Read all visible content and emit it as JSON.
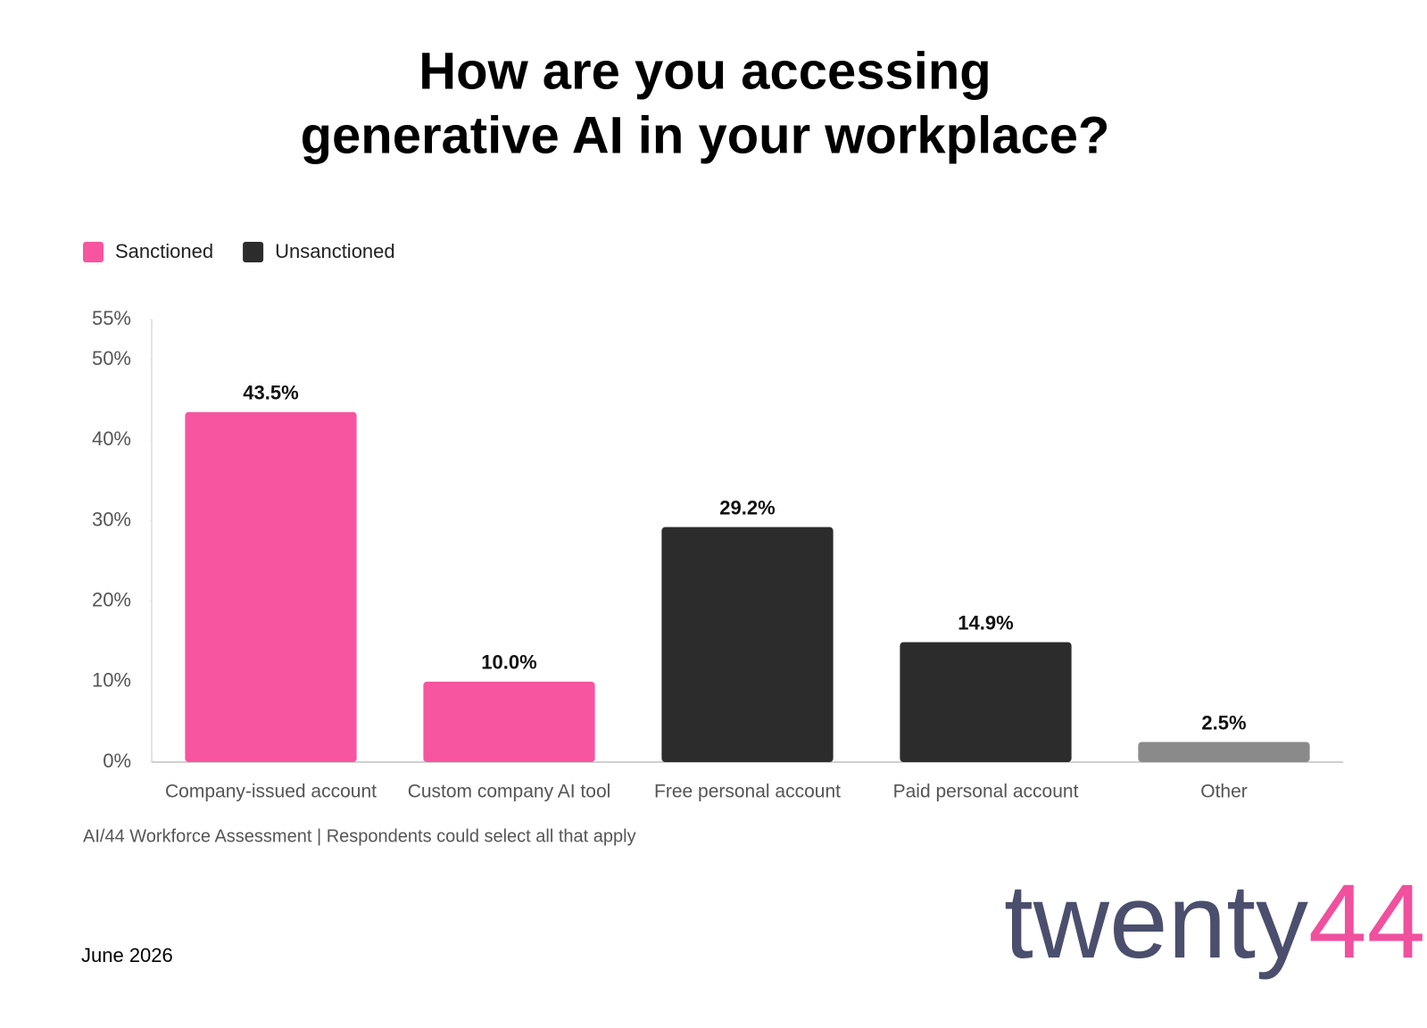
{
  "chart_data": {
    "type": "bar",
    "title": [
      "How are you accessing",
      "generative AI in your workplace?"
    ],
    "legend": [
      {
        "name": "Sanctioned",
        "color": "#f7559f"
      },
      {
        "name": "Unsanctioned",
        "color": "#2c2c2c"
      }
    ],
    "categories": [
      "Company-issued account",
      "Custom company AI tool",
      "Free personal account",
      "Paid personal account",
      "Other"
    ],
    "values": [
      43.5,
      10.0,
      29.2,
      14.9,
      2.5
    ],
    "value_labels": [
      "43.5%",
      "10.0%",
      "29.2%",
      "14.9%",
      "2.5%"
    ],
    "colors": [
      "#f7559f",
      "#f7559f",
      "#2c2c2c",
      "#2c2c2c",
      "#8a8a8a"
    ],
    "ylim": [
      0,
      55
    ],
    "yticks": [
      {
        "value": 0,
        "label": "0%"
      },
      {
        "value": 10,
        "label": "10%"
      },
      {
        "value": 20,
        "label": "20%"
      },
      {
        "value": 30,
        "label": "30%"
      },
      {
        "value": 40,
        "label": "40%"
      },
      {
        "value": 50,
        "label": "50%"
      },
      {
        "value": 55,
        "label": "55%"
      }
    ],
    "source": "AI/44 Workforce Assessment | Respondents could select all that apply",
    "date": "June 2026",
    "logo": {
      "text": "twenty",
      "accent": "44"
    }
  }
}
